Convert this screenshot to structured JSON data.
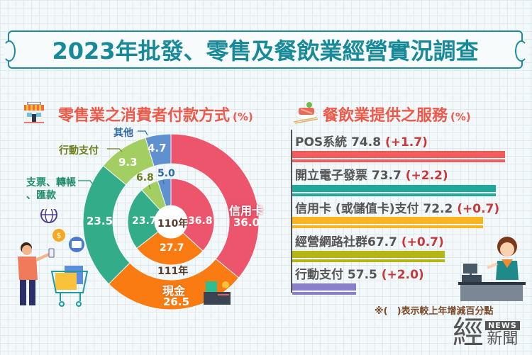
{
  "title": "2023年批發、零售及餐飲業經營實況調查",
  "left_section": {
    "title": "零售業之消費者付款方式",
    "unit": "(%)",
    "outer_year": "111年",
    "inner_year": "110年",
    "category_labels": {
      "credit": "信用卡",
      "cash": "現金",
      "check": "支票、轉帳\n、匯款",
      "check_line1": "支票、轉帳",
      "check_line2": "、匯款",
      "mobile": "行動支付",
      "other": "其他"
    }
  },
  "right_section": {
    "title": "餐飲業提供之服務",
    "unit": "(%)",
    "note": "※(　)表示較上年增減百分點"
  },
  "logo": {
    "big": "經",
    "news": "NEWS",
    "small": "新聞"
  },
  "colors": {
    "title": "#178a9a",
    "section_title": "#ee5a4a",
    "credit": "#ec556b",
    "cash": "#f97b12",
    "check": "#33ac8a",
    "mobile": "#a3cf62",
    "other": "#5f90cf",
    "bar_pos": "#f45b5b",
    "bar_invoice": "#1fa99b",
    "bar_card": "#f8b520",
    "bar_social": "#b5b513",
    "bar_mobile": "#8a80c8"
  },
  "chart_data": [
    {
      "type": "pie",
      "subtype": "nested-donut",
      "title": "零售業之消費者付款方式 (%)",
      "categories": [
        "信用卡",
        "現金",
        "支票、轉帳、匯款",
        "行動支付",
        "其他"
      ],
      "series": [
        {
          "name": "111年",
          "ring": "outer",
          "values": [
            36.0,
            26.5,
            23.5,
            9.3,
            4.7
          ]
        },
        {
          "name": "110年",
          "ring": "inner",
          "values": [
            36.8,
            27.7,
            23.7,
            6.8,
            5.0
          ]
        }
      ],
      "legend_position": "inline-labels"
    },
    {
      "type": "bar",
      "orientation": "horizontal",
      "title": "餐飲業提供之服務 (%)",
      "categories": [
        "POS系統",
        "開立電子發票",
        "信用卡 (或儲值卡)支付",
        "經營網路社群",
        "行動支付"
      ],
      "values": [
        74.8,
        73.7,
        72.2,
        67.7,
        57.5
      ],
      "changes": [
        "+1.7",
        "+2.2",
        "+0.7",
        "+0.7",
        "+2.0"
      ],
      "annotation": "※( )表示較上年增減百分點",
      "grid": false
    }
  ],
  "bars": [
    {
      "label": "POS系統 74.8 ",
      "change": "(+1.7)"
    },
    {
      "label": "開立電子發票 73.7 ",
      "change": "(+2.2)"
    },
    {
      "label": "信用卡 (或儲值卡)支付 72.2 ",
      "change": "(+0.7)"
    },
    {
      "label": "經營網路社群67.7 ",
      "change": "(+0.7)"
    },
    {
      "label": "行動支付 57.5 ",
      "change": "(+2.0)"
    }
  ]
}
